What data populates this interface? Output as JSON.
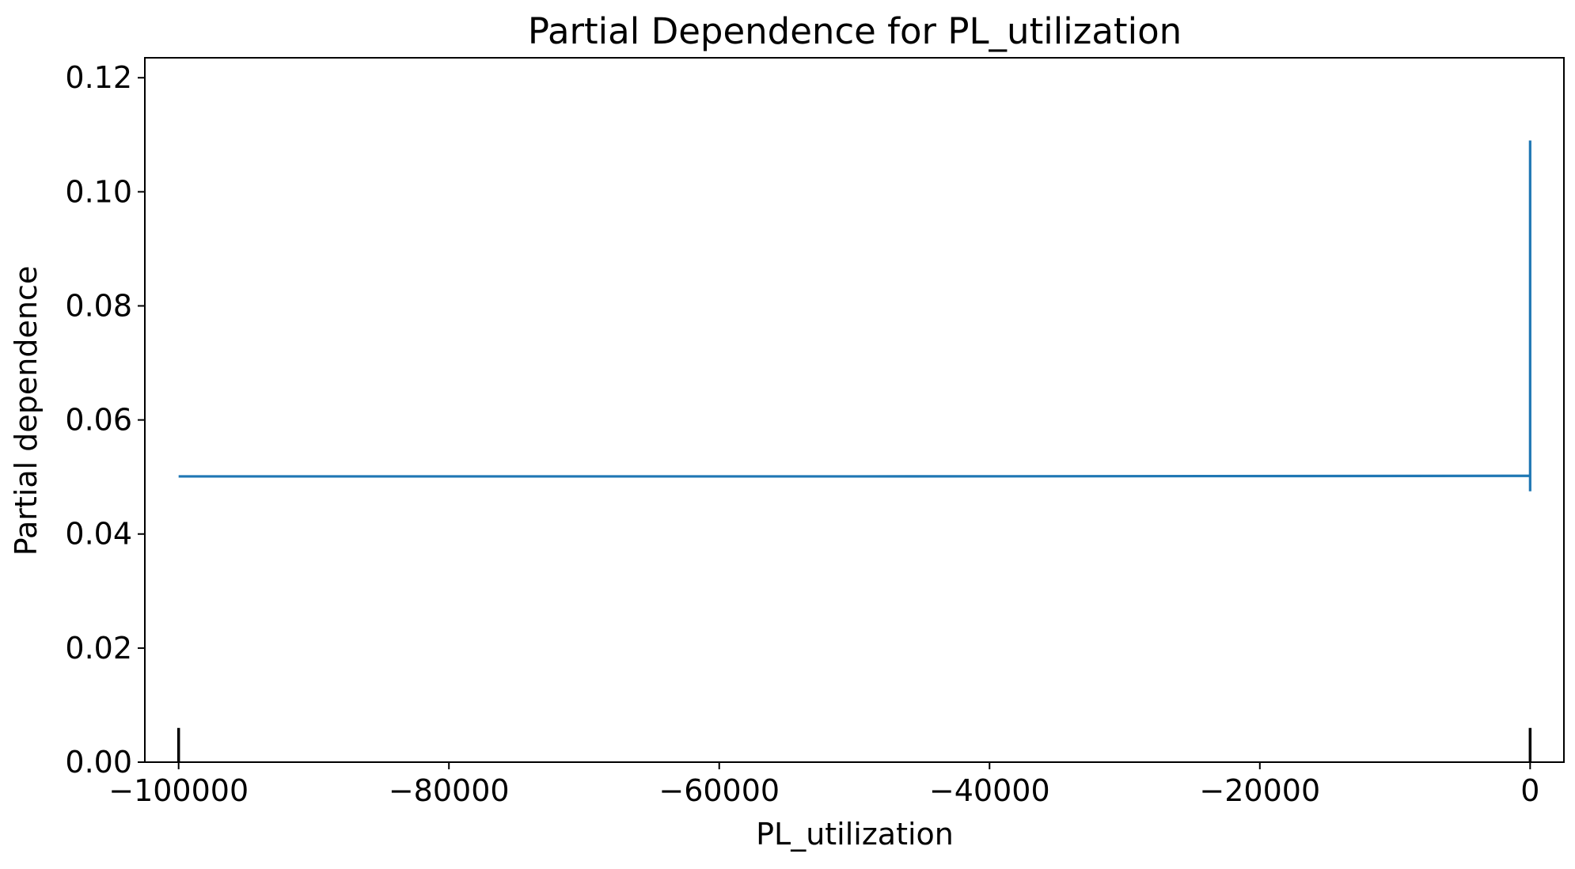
{
  "chart_data": {
    "type": "line",
    "title": "Partial Dependence for PL_utilization",
    "xlabel": "PL_utilization",
    "ylabel": "Partial dependence",
    "xlim": [
      -102500,
      2500
    ],
    "ylim": [
      0,
      0.1235
    ],
    "x_ticks": [
      -100000,
      -80000,
      -60000,
      -40000,
      -20000,
      0
    ],
    "x_tick_labels": [
      "−100000",
      "−80000",
      "−60000",
      "−40000",
      "−20000",
      "0"
    ],
    "y_ticks": [
      0,
      0.02,
      0.04,
      0.06,
      0.08,
      0.1,
      0.12
    ],
    "y_tick_labels": [
      "0.00",
      "0.02",
      "0.04",
      "0.06",
      "0.08",
      "0.10",
      "0.12"
    ],
    "series": [
      {
        "color": "#1f77b4",
        "x": [
          -100000,
          -50000,
          -100,
          -50,
          -50,
          0,
          0,
          0
        ],
        "y": [
          0.0501,
          0.0501,
          0.0502,
          0.0502,
          0.0502,
          0.0502,
          0.109,
          0.0475
        ]
      }
    ],
    "rug": {
      "x": [
        -100000,
        0
      ],
      "height": 0.006,
      "color": "#000000"
    },
    "grid": false,
    "legend": "none"
  }
}
